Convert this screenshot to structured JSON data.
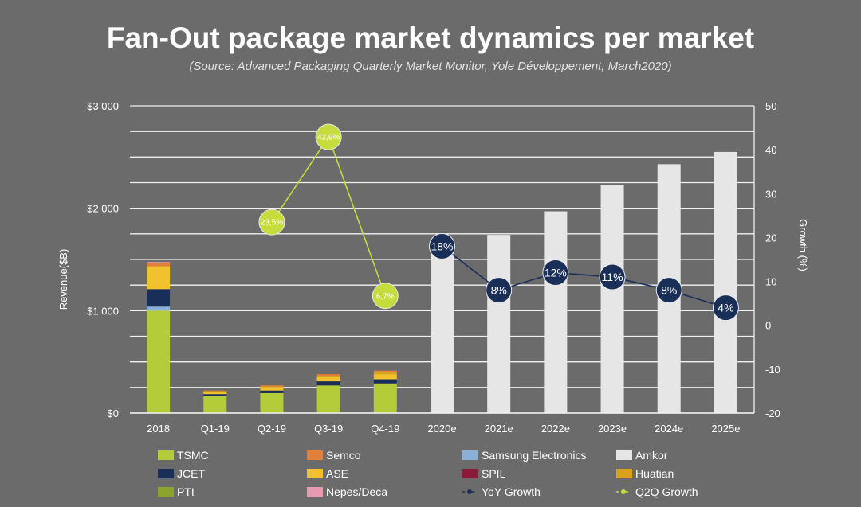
{
  "chart_data": {
    "type": "bar",
    "title": "Fan-Out package market dynamics per market",
    "subtitle": "(Source: Advanced Packaging Quarterly Market Monitor, Yole Développement, March2020)",
    "ylabel": "Revenue($B)",
    "y2label": "Growth (%)",
    "ylim": [
      0,
      3000
    ],
    "y2lim": [
      -20,
      50
    ],
    "y_ticks": [
      {
        "value": 0,
        "label": "$0"
      },
      {
        "value": 1000,
        "label": "$1 000"
      },
      {
        "value": 2000,
        "label": "$2 000"
      },
      {
        "value": 3000,
        "label": "$3 000"
      }
    ],
    "y2_ticks": [
      {
        "value": 50,
        "label": "50"
      },
      {
        "value": 40,
        "label": "40"
      },
      {
        "value": 30,
        "label": "30"
      },
      {
        "value": 20,
        "label": "20"
      },
      {
        "value": 10,
        "label": "10"
      },
      {
        "value": 0,
        "label": "0"
      },
      {
        "value": -10,
        "label": "-10"
      },
      {
        "value": -20,
        "label": "-20"
      }
    ],
    "categories": [
      "2018",
      "Q1-19",
      "Q2-19",
      "Q3-19",
      "Q4-19",
      "2020e",
      "2021e",
      "2022e",
      "2023e",
      "2024e",
      "2025e"
    ],
    "series": [
      {
        "name": "TSMC",
        "color": "#b5cc3a",
        "values": [
          1000,
          165,
          195,
          270,
          290,
          0,
          0,
          0,
          0,
          0,
          0
        ]
      },
      {
        "name": "Samsung Electronics",
        "color": "#8ab0d8",
        "values": [
          40,
          0,
          0,
          0,
          0,
          0,
          0,
          0,
          0,
          0,
          0
        ]
      },
      {
        "name": "JCET",
        "color": "#1a2f58",
        "values": [
          170,
          20,
          25,
          40,
          40,
          0,
          0,
          0,
          0,
          0,
          0
        ]
      },
      {
        "name": "ASE",
        "color": "#f2c12e",
        "values": [
          225,
          25,
          30,
          40,
          50,
          0,
          0,
          0,
          0,
          0,
          0
        ]
      },
      {
        "name": "Huatian",
        "color": "#d9a21a",
        "values": [
          0,
          5,
          10,
          15,
          20,
          0,
          0,
          0,
          0,
          0,
          0
        ]
      },
      {
        "name": "Semco",
        "color": "#e0803a",
        "values": [
          30,
          5,
          10,
          15,
          15,
          0,
          0,
          0,
          0,
          0,
          0
        ]
      },
      {
        "name": "Nepes/Deca",
        "color": "#e79bb0",
        "values": [
          10,
          0,
          0,
          0,
          0,
          0,
          0,
          0,
          0,
          0,
          0
        ]
      },
      {
        "name": "SPIL",
        "color": "#8b1a3a",
        "values": [
          0,
          0,
          0,
          0,
          0,
          0,
          0,
          0,
          0,
          0,
          0
        ]
      },
      {
        "name": "PTI",
        "color": "#8ca32d",
        "values": [
          0,
          0,
          0,
          0,
          0,
          0,
          0,
          0,
          0,
          0,
          0
        ]
      },
      {
        "name": "Amkor",
        "color": "#e6e6e6",
        "values": [
          0,
          0,
          0,
          0,
          0,
          1630,
          1740,
          1970,
          2230,
          2430,
          2550
        ]
      }
    ],
    "lines": [
      {
        "name": "YoY Growth",
        "axis": "y2",
        "color": "#1a2f58",
        "marker_color": "#1a2f58",
        "label_color": "#ffffff",
        "points": [
          {
            "category": "2020e",
            "value": 18,
            "label": "18%"
          },
          {
            "category": "2021e",
            "value": 8,
            "label": "8%"
          },
          {
            "category": "2022e",
            "value": 12,
            "label": "12%"
          },
          {
            "category": "2023e",
            "value": 11,
            "label": "11%"
          },
          {
            "category": "2024e",
            "value": 8,
            "label": "8%"
          },
          {
            "category": "2025e",
            "value": 4,
            "label": "4%"
          }
        ]
      },
      {
        "name": "Q2Q Growth",
        "axis": "y2",
        "color": "#c5dc3c",
        "marker_color": "#c5dc3c",
        "label_color": "#ffffff",
        "points": [
          {
            "category": "Q2-19",
            "value": 23.5,
            "label": "23,5%"
          },
          {
            "category": "Q3-19",
            "value": 42.9,
            "label": "42,9%"
          },
          {
            "category": "Q4-19",
            "value": 6.7,
            "label": "6,7%"
          }
        ]
      }
    ],
    "legend": [
      {
        "name": "TSMC",
        "kind": "box",
        "color": "#b5cc3a"
      },
      {
        "name": "Semco",
        "kind": "box",
        "color": "#e0803a"
      },
      {
        "name": "Samsung Electronics",
        "kind": "box",
        "color": "#8ab0d8"
      },
      {
        "name": "Amkor",
        "kind": "box",
        "color": "#e6e6e6"
      },
      {
        "name": "JCET",
        "kind": "box",
        "color": "#1a2f58"
      },
      {
        "name": "ASE",
        "kind": "box",
        "color": "#f2c12e"
      },
      {
        "name": "SPIL",
        "kind": "box",
        "color": "#8b1a3a"
      },
      {
        "name": "Huatian",
        "kind": "box",
        "color": "#d9a21a"
      },
      {
        "name": "PTI",
        "kind": "box",
        "color": "#8ca32d"
      },
      {
        "name": "Nepes/Deca",
        "kind": "box",
        "color": "#e79bb0"
      },
      {
        "name": "YoY Growth",
        "kind": "line",
        "color": "#1a2f58"
      },
      {
        "name": "Q2Q Growth",
        "kind": "line",
        "color": "#c5dc3c"
      }
    ],
    "legend_position": "bottom",
    "grid": true
  }
}
